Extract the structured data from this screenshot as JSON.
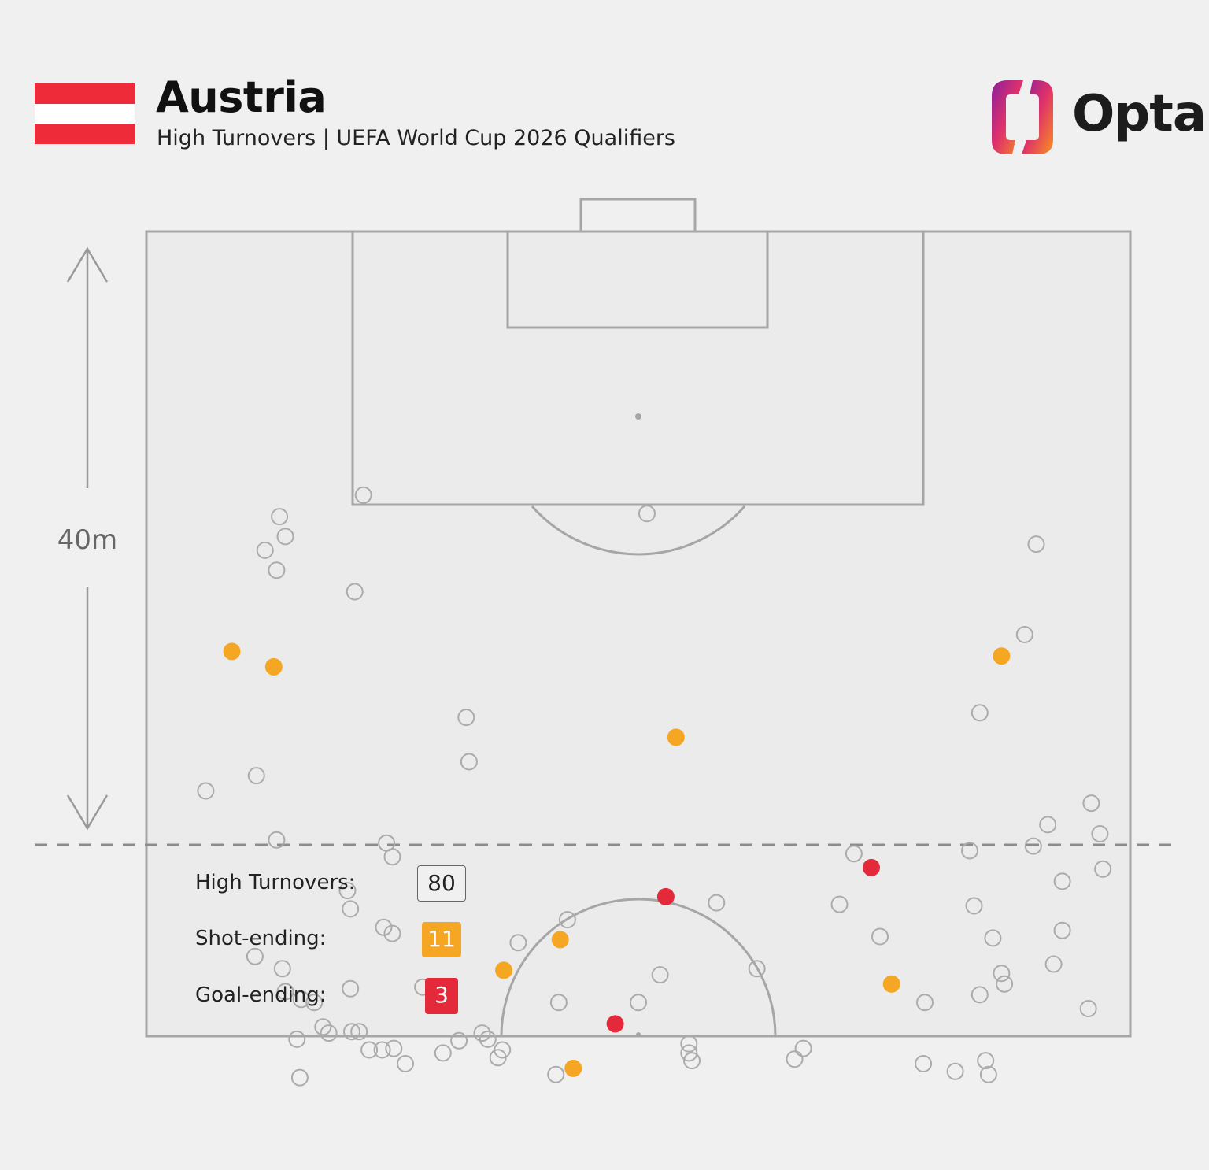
{
  "header": {
    "title": "Austria",
    "subtitle": "High Turnovers | UEFA World Cup 2026 Qualifiers",
    "logo_text": "Opta"
  },
  "flag": {
    "colors": [
      "#ee2b39",
      "#ffffff",
      "#ee2b39"
    ]
  },
  "distance_label": "40m",
  "legend": {
    "high_turnovers_label": "High Turnovers:",
    "high_turnovers_value": "80",
    "shot_ending_label": "Shot-ending:",
    "shot_ending_value": "11",
    "goal_ending_label": "Goal-ending:",
    "goal_ending_value": "3"
  },
  "colors": {
    "background": "#f0f0f0",
    "pitch_lines": "#a6a6a6",
    "turnover": "#ababab",
    "shot_ending": "#f5a623",
    "goal_ending": "#e42a3a"
  },
  "chart_data": {
    "type": "scatter",
    "x_unit": "metres across pitch width (0-68)",
    "y_unit": "metres from goal line (0-52.5)",
    "series": [
      {
        "name": "High Turnovers",
        "marker": "hollow",
        "points": [
          [
            9.2,
            18.6
          ],
          [
            9.6,
            19.9
          ],
          [
            15.0,
            17.2
          ],
          [
            14.4,
            23.5
          ],
          [
            34.6,
            18.4
          ],
          [
            4.1,
            36.5
          ],
          [
            9.0,
            39.7
          ],
          [
            16.6,
            39.9
          ],
          [
            17.0,
            40.8
          ],
          [
            13.9,
            43.0
          ],
          [
            14.1,
            44.2
          ],
          [
            16.4,
            45.4
          ],
          [
            17.0,
            45.8
          ],
          [
            9.4,
            48.1
          ],
          [
            9.6,
            49.6
          ],
          [
            11.6,
            50.3
          ],
          [
            12.2,
            51.9
          ],
          [
            10.7,
            50.1
          ],
          [
            7.5,
            47.3
          ],
          [
            10.4,
            52.7
          ],
          [
            12.6,
            52.3
          ],
          [
            14.1,
            49.4
          ],
          [
            19.1,
            49.3
          ],
          [
            14.7,
            52.2
          ],
          [
            15.4,
            53.4
          ],
          [
            17.1,
            53.3
          ],
          [
            16.3,
            53.4
          ],
          [
            17.9,
            54.3
          ],
          [
            20.5,
            53.6
          ],
          [
            23.6,
            52.7
          ],
          [
            24.3,
            53.9
          ],
          [
            29.1,
            44.9
          ],
          [
            28.5,
            50.3
          ],
          [
            34.0,
            50.3
          ],
          [
            35.5,
            48.5
          ],
          [
            37.7,
            54.1
          ],
          [
            37.5,
            53.0
          ],
          [
            37.5,
            53.6
          ],
          [
            10.6,
            55.2
          ],
          [
            25.7,
            46.4
          ],
          [
            28.3,
            55.0
          ],
          [
            39.4,
            43.8
          ],
          [
            42.2,
            48.1
          ],
          [
            44.8,
            54.0
          ],
          [
            45.4,
            53.3
          ],
          [
            47.9,
            43.9
          ],
          [
            50.7,
            46.0
          ],
          [
            48.9,
            40.6
          ],
          [
            53.8,
            50.3
          ],
          [
            53.7,
            54.3
          ],
          [
            55.9,
            54.8
          ],
          [
            56.9,
            40.4
          ],
          [
            57.2,
            44.0
          ],
          [
            57.6,
            49.8
          ],
          [
            58.5,
            46.1
          ],
          [
            59.1,
            48.4
          ],
          [
            59.3,
            49.1
          ],
          [
            58.2,
            55.0
          ],
          [
            58.0,
            54.1
          ],
          [
            57.6,
            31.4
          ],
          [
            61.5,
            20.4
          ],
          [
            60.7,
            26.3
          ],
          [
            62.3,
            38.7
          ],
          [
            61.3,
            40.1
          ],
          [
            63.3,
            42.4
          ],
          [
            63.3,
            45.6
          ],
          [
            62.7,
            47.8
          ],
          [
            65.3,
            37.3
          ],
          [
            65.9,
            39.3
          ],
          [
            66.1,
            41.6
          ],
          [
            65.1,
            50.7
          ],
          [
            22.1,
            31.7
          ],
          [
            22.3,
            34.6
          ],
          [
            8.2,
            20.8
          ],
          [
            9.0,
            22.1
          ],
          [
            14.2,
            52.2
          ],
          [
            7.6,
            35.5
          ],
          [
            21.6,
            52.8
          ],
          [
            23.2,
            52.3
          ],
          [
            24.6,
            53.4
          ]
        ]
      },
      {
        "name": "Shot-ending",
        "marker": "orange",
        "points": [
          [
            5.9,
            27.4
          ],
          [
            8.8,
            28.4
          ],
          [
            36.6,
            33.0
          ],
          [
            59.1,
            27.7
          ],
          [
            28.6,
            46.2
          ],
          [
            24.7,
            48.2
          ],
          [
            51.5,
            49.1
          ],
          [
            29.5,
            54.6
          ]
        ]
      },
      {
        "name": "Goal-ending",
        "marker": "red",
        "points": [
          [
            35.9,
            43.4
          ],
          [
            50.1,
            41.5
          ],
          [
            32.4,
            51.7
          ]
        ]
      }
    ]
  }
}
